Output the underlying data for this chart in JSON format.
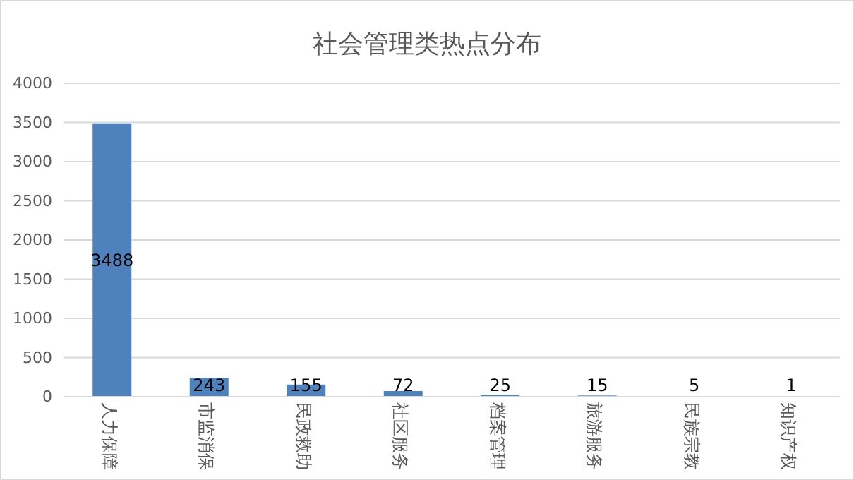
{
  "chart_data": {
    "type": "bar",
    "title": "社会管理类热点分布",
    "categories": [
      "人力保障",
      "市监消保",
      "民政救助",
      "社区服务",
      "档案管理",
      "旅游服务",
      "民族宗教",
      "知识产权"
    ],
    "values": [
      3488,
      243,
      155,
      72,
      25,
      15,
      5,
      1
    ],
    "color": "#4f81bd",
    "ylim": [
      0,
      4000
    ],
    "yticks": [
      0,
      500,
      1000,
      1500,
      2000,
      2500,
      3000,
      3500,
      4000
    ],
    "grid": "y",
    "data_labels": true
  }
}
